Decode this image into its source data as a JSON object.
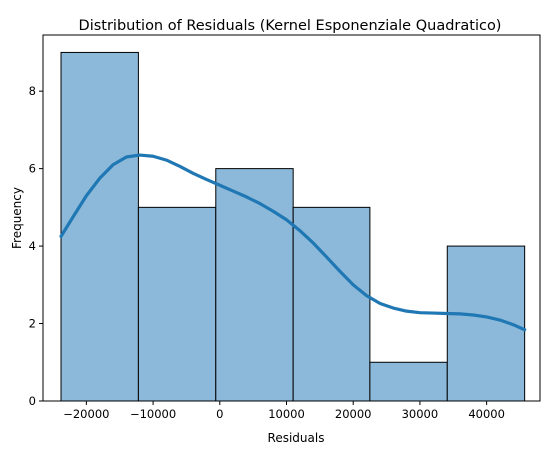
{
  "chart_data": {
    "type": "bar",
    "title": "Distribution of Residuals (Kernel Esponenziale Quadratico)",
    "xlabel": "Residuals",
    "ylabel": "Frequency",
    "xlim": [
      -26500,
      48000
    ],
    "ylim": [
      0,
      9.45
    ],
    "xticks": [
      -20000,
      -10000,
      0,
      10000,
      20000,
      30000,
      40000
    ],
    "xtick_labels": [
      "−20000",
      "−10000",
      "0",
      "10000",
      "20000",
      "30000",
      "40000"
    ],
    "yticks": [
      0,
      2,
      4,
      6,
      8
    ],
    "ytick_labels": [
      "0",
      "2",
      "4",
      "6",
      "8"
    ],
    "bins": [
      {
        "x0": -23800,
        "x1": -12200,
        "count": 9
      },
      {
        "x0": -12200,
        "x1": -600,
        "count": 5
      },
      {
        "x0": -600,
        "x1": 11000,
        "count": 6
      },
      {
        "x0": 11000,
        "x1": 22500,
        "count": 5
      },
      {
        "x0": 22500,
        "x1": 34100,
        "count": 1
      },
      {
        "x0": 34100,
        "x1": 45700,
        "count": 4
      }
    ],
    "kde": {
      "name": "KDE",
      "x": [
        -23800,
        -22000,
        -20000,
        -18000,
        -16000,
        -14000,
        -12000,
        -10000,
        -8000,
        -6000,
        -4000,
        -2000,
        0,
        2000,
        4000,
        6000,
        8000,
        10000,
        12000,
        14000,
        16000,
        18000,
        20000,
        22000,
        24000,
        26000,
        28000,
        30000,
        32000,
        34000,
        36000,
        38000,
        40000,
        42000,
        44000,
        45700
      ],
      "y": [
        4.25,
        4.75,
        5.3,
        5.75,
        6.1,
        6.3,
        6.35,
        6.32,
        6.22,
        6.06,
        5.88,
        5.72,
        5.57,
        5.42,
        5.27,
        5.1,
        4.9,
        4.68,
        4.4,
        4.08,
        3.72,
        3.35,
        3.0,
        2.72,
        2.52,
        2.4,
        2.32,
        2.28,
        2.27,
        2.26,
        2.25,
        2.22,
        2.17,
        2.09,
        1.97,
        1.84
      ]
    },
    "colors": {
      "bar_fill": "#8cb9d9",
      "line": "#1f77b4",
      "edge": "#000000"
    },
    "grid": false
  }
}
